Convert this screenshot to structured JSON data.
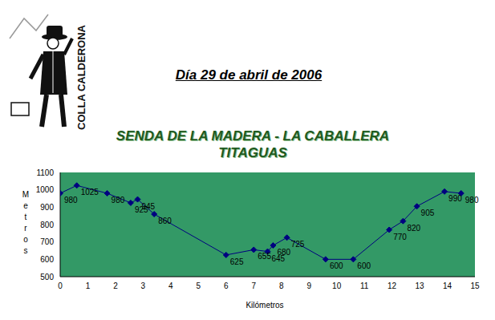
{
  "header": {
    "logo_text": "COLLA CALDERONA",
    "date": "Día 29 de abril de 2006"
  },
  "chart_data": {
    "type": "line",
    "title": "SENDA DE LA MADERA - LA CABALLERA",
    "subtitle": "TITAGUAS",
    "x_label": "Kilómetros",
    "y_label": "Metros",
    "x": [
      0,
      0.6,
      1.7,
      2.55,
      2.8,
      3.4,
      6.0,
      7.0,
      7.5,
      7.7,
      8.2,
      9.6,
      10.6,
      11.9,
      12.4,
      12.9,
      13.9,
      14.5
    ],
    "values": [
      980,
      1025,
      980,
      925,
      945,
      860,
      625,
      655,
      645,
      680,
      725,
      600,
      600,
      770,
      820,
      905,
      990,
      980
    ],
    "color": "#000080",
    "marker": "diamond",
    "data_labels": true,
    "grid": false,
    "xlim": [
      0,
      15
    ],
    "xticks": [
      0,
      1,
      2,
      3,
      4,
      5,
      6,
      7,
      8,
      9,
      10,
      11,
      12,
      13,
      14,
      15
    ],
    "ylim": [
      500,
      1100
    ],
    "yticks": [
      500,
      600,
      700,
      800,
      900,
      1000,
      1100
    ]
  }
}
